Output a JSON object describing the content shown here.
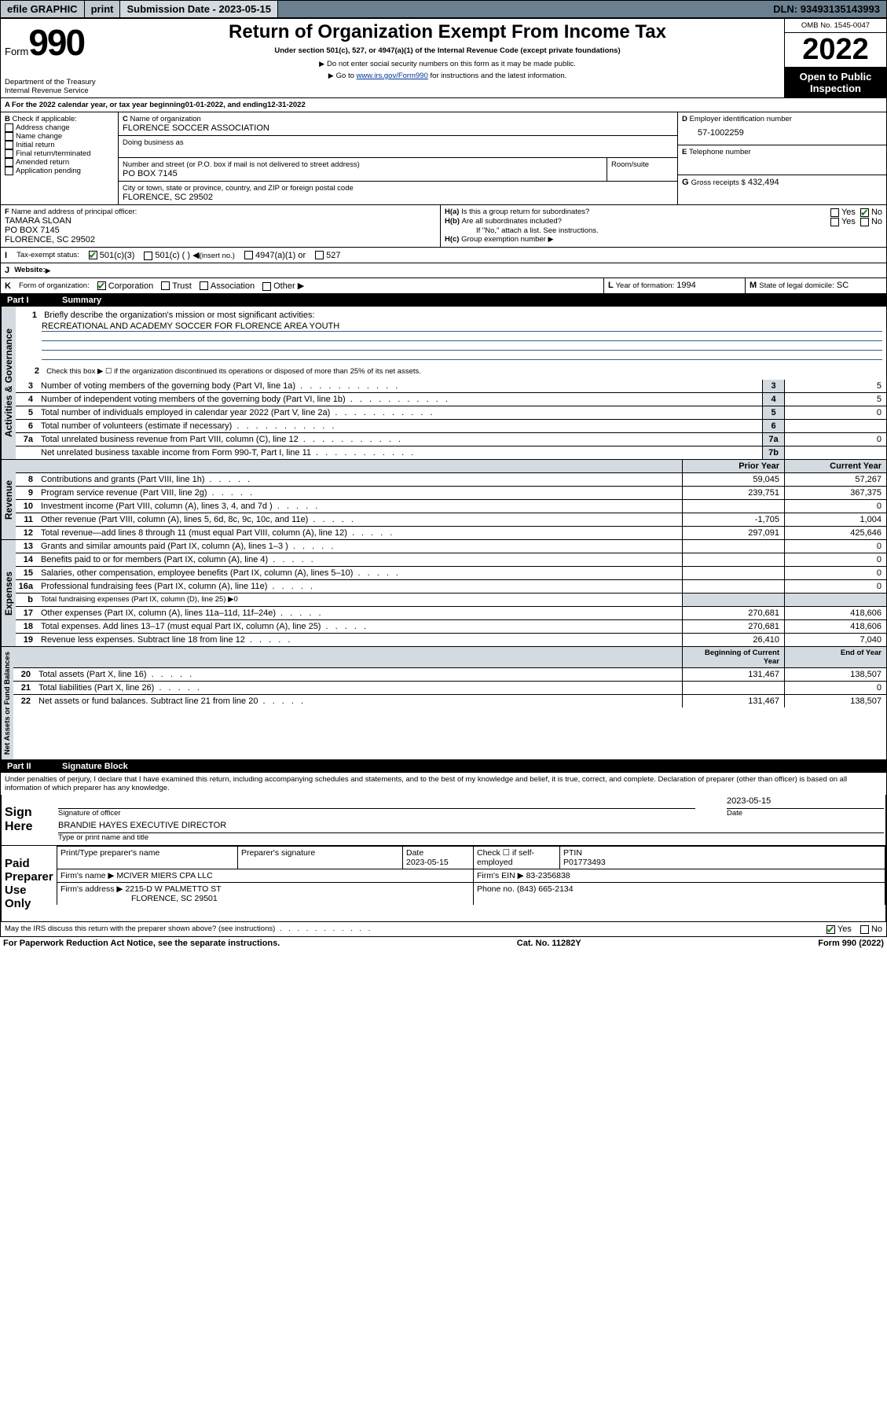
{
  "topbar": {
    "efile": "efile GRAPHIC",
    "print": "print",
    "submission_label": "Submission Date - ",
    "submission_date": "2023-05-15",
    "dln_label": "DLN: ",
    "dln": "93493135143993"
  },
  "header": {
    "form_word": "Form",
    "form_num": "990",
    "title": "Return of Organization Exempt From Income Tax",
    "sub1": "Under section 501(c), 527, or 4947(a)(1) of the Internal Revenue Code (except private foundations)",
    "sub2": "Do not enter social security numbers on this form as it may be made public.",
    "sub3_pre": "Go to ",
    "sub3_link": "www.irs.gov/Form990",
    "sub3_post": " for instructions and the latest information.",
    "dept": "Department of the Treasury\nInternal Revenue Service",
    "omb": "OMB No. 1545-0047",
    "year": "2022",
    "inspect": "Open to Public Inspection"
  },
  "sectionA": {
    "A": "For the 2022 calendar year, or tax year beginning ",
    "A_begin": "01-01-2022",
    "A_mid": "  , and ending ",
    "A_end": "12-31-2022",
    "B_label": "Check if applicable:",
    "B_opts": [
      "Address change",
      "Name change",
      "Initial return",
      "Final return/terminated",
      "Amended return",
      "Application pending"
    ],
    "C_label": "Name of organization",
    "C_name": "FLORENCE SOCCER ASSOCIATION",
    "C_dba": "Doing business as",
    "C_addr_label": "Number and street (or P.O. box if mail is not delivered to street address)",
    "C_room": "Room/suite",
    "C_addr": "PO BOX 7145",
    "C_city_label": "City or town, state or province, country, and ZIP or foreign postal code",
    "C_city": "FLORENCE, SC  29502",
    "D_label": "Employer identification number",
    "D_ein": "57-1002259",
    "E_label": "Telephone number",
    "G_label": "Gross receipts $",
    "G_val": "432,494",
    "F_label": "Name and address of principal officer:",
    "F_name": "TAMARA SLOAN",
    "F_addr1": "PO BOX 7145",
    "F_addr2": "FLORENCE, SC  29502",
    "Ha": "Is this a group return for subordinates?",
    "Hb": "Are all subordinates included?",
    "H_note": "If \"No,\" attach a list. See instructions.",
    "Hc": "Group exemption number",
    "I_label": "Tax-exempt status:",
    "I_opts": [
      "501(c)(3)",
      "501(c) (  )",
      "(insert no.)",
      "4947(a)(1) or",
      "527"
    ],
    "J_label": "Website:",
    "K_label": "Form of organization:",
    "K_opts": [
      "Corporation",
      "Trust",
      "Association",
      "Other"
    ],
    "L_label": "Year of formation:",
    "L_val": "1994",
    "M_label": "State of legal domicile:",
    "M_val": "SC",
    "yn": {
      "yes": "Yes",
      "no": "No"
    }
  },
  "partI": {
    "part": "Part I",
    "title": "Summary",
    "line1": "Briefly describe the organization's mission or most significant activities:",
    "mission": "RECREATIONAL AND ACADEMY SOCCER FOR FLORENCE AREA YOUTH",
    "line2": "Check this box ▶ ☐  if the organization discontinued its operations or disposed of more than 25% of its net assets.",
    "rows_top": [
      {
        "n": "3",
        "t": "Number of voting members of the governing body (Part VI, line 1a)",
        "box": "3",
        "v": "5"
      },
      {
        "n": "4",
        "t": "Number of independent voting members of the governing body (Part VI, line 1b)",
        "box": "4",
        "v": "5"
      },
      {
        "n": "5",
        "t": "Total number of individuals employed in calendar year 2022 (Part V, line 2a)",
        "box": "5",
        "v": "0"
      },
      {
        "n": "6",
        "t": "Total number of volunteers (estimate if necessary)",
        "box": "6",
        "v": ""
      },
      {
        "n": "7a",
        "t": "Total unrelated business revenue from Part VIII, column (C), line 12",
        "box": "7a",
        "v": "0"
      },
      {
        "n": "",
        "t": "Net unrelated business taxable income from Form 990-T, Part I, line 11",
        "box": "7b",
        "v": ""
      }
    ],
    "hdr_prior": "Prior Year",
    "hdr_curr": "Current Year",
    "revenue": [
      {
        "n": "8",
        "t": "Contributions and grants (Part VIII, line 1h)",
        "p": "59,045",
        "c": "57,267"
      },
      {
        "n": "9",
        "t": "Program service revenue (Part VIII, line 2g)",
        "p": "239,751",
        "c": "367,375"
      },
      {
        "n": "10",
        "t": "Investment income (Part VIII, column (A), lines 3, 4, and 7d )",
        "p": "",
        "c": "0"
      },
      {
        "n": "11",
        "t": "Other revenue (Part VIII, column (A), lines 5, 6d, 8c, 9c, 10c, and 11e)",
        "p": "-1,705",
        "c": "1,004"
      },
      {
        "n": "12",
        "t": "Total revenue—add lines 8 through 11 (must equal Part VIII, column (A), line 12)",
        "p": "297,091",
        "c": "425,646"
      }
    ],
    "expenses": [
      {
        "n": "13",
        "t": "Grants and similar amounts paid (Part IX, column (A), lines 1–3 )",
        "p": "",
        "c": "0"
      },
      {
        "n": "14",
        "t": "Benefits paid to or for members (Part IX, column (A), line 4)",
        "p": "",
        "c": "0"
      },
      {
        "n": "15",
        "t": "Salaries, other compensation, employee benefits (Part IX, column (A), lines 5–10)",
        "p": "",
        "c": "0"
      },
      {
        "n": "16a",
        "t": "Professional fundraising fees (Part IX, column (A), line 11e)",
        "p": "",
        "c": "0"
      },
      {
        "n": "b",
        "t": "Total fundraising expenses (Part IX, column (D), line 25) ▶0",
        "p": null,
        "c": null
      },
      {
        "n": "17",
        "t": "Other expenses (Part IX, column (A), lines 11a–11d, 11f–24e)",
        "p": "270,681",
        "c": "418,606"
      },
      {
        "n": "18",
        "t": "Total expenses. Add lines 13–17 (must equal Part IX, column (A), line 25)",
        "p": "270,681",
        "c": "418,606"
      },
      {
        "n": "19",
        "t": "Revenue less expenses. Subtract line 18 from line 12",
        "p": "26,410",
        "c": "7,040"
      }
    ],
    "hdr_begin": "Beginning of Current Year",
    "hdr_end": "End of Year",
    "net": [
      {
        "n": "20",
        "t": "Total assets (Part X, line 16)",
        "p": "131,467",
        "c": "138,507"
      },
      {
        "n": "21",
        "t": "Total liabilities (Part X, line 26)",
        "p": "",
        "c": "0"
      },
      {
        "n": "22",
        "t": "Net assets or fund balances. Subtract line 21 from line 20",
        "p": "131,467",
        "c": "138,507"
      }
    ],
    "tabs": {
      "gov": "Activities & Governance",
      "rev": "Revenue",
      "exp": "Expenses",
      "net": "Net Assets or Fund Balances"
    }
  },
  "partII": {
    "part": "Part II",
    "title": "Signature Block",
    "decl": "Under penalties of perjury, I declare that I have examined this return, including accompanying schedules and statements, and to the best of my knowledge and belief, it is true, correct, and complete. Declaration of preparer (other than officer) is based on all information of which preparer has any knowledge.",
    "sign_here": "Sign Here",
    "sig_officer": "Signature of officer",
    "sig_date": "Date",
    "sig_dateval": "2023-05-15",
    "officer_name": "BRANDIE HAYES  EXECUTIVE DIRECTOR",
    "type_name": "Type or print name and title",
    "paid": "Paid Preparer Use Only",
    "pp_name_lbl": "Print/Type preparer's name",
    "pp_sig_lbl": "Preparer's signature",
    "pp_date_lbl": "Date",
    "pp_date": "2023-05-15",
    "pp_chk": "Check ☐ if self-employed",
    "ptin_lbl": "PTIN",
    "ptin": "P01773493",
    "firm_name_lbl": "Firm's name   ▶",
    "firm_name": "MCIVER MIERS CPA LLC",
    "firm_ein_lbl": "Firm's EIN ▶",
    "firm_ein": "83-2356838",
    "firm_addr_lbl": "Firm's address ▶",
    "firm_addr1": "2215-D W PALMETTO ST",
    "firm_addr2": "FLORENCE, SC  29501",
    "phone_lbl": "Phone no.",
    "phone": "(843) 665-2134",
    "discuss": "May the IRS discuss this return with the preparer shown above? (see instructions)"
  },
  "footer": {
    "paperwork": "For Paperwork Reduction Act Notice, see the separate instructions.",
    "cat": "Cat. No. 11282Y",
    "form": "Form 990 (2022)"
  }
}
